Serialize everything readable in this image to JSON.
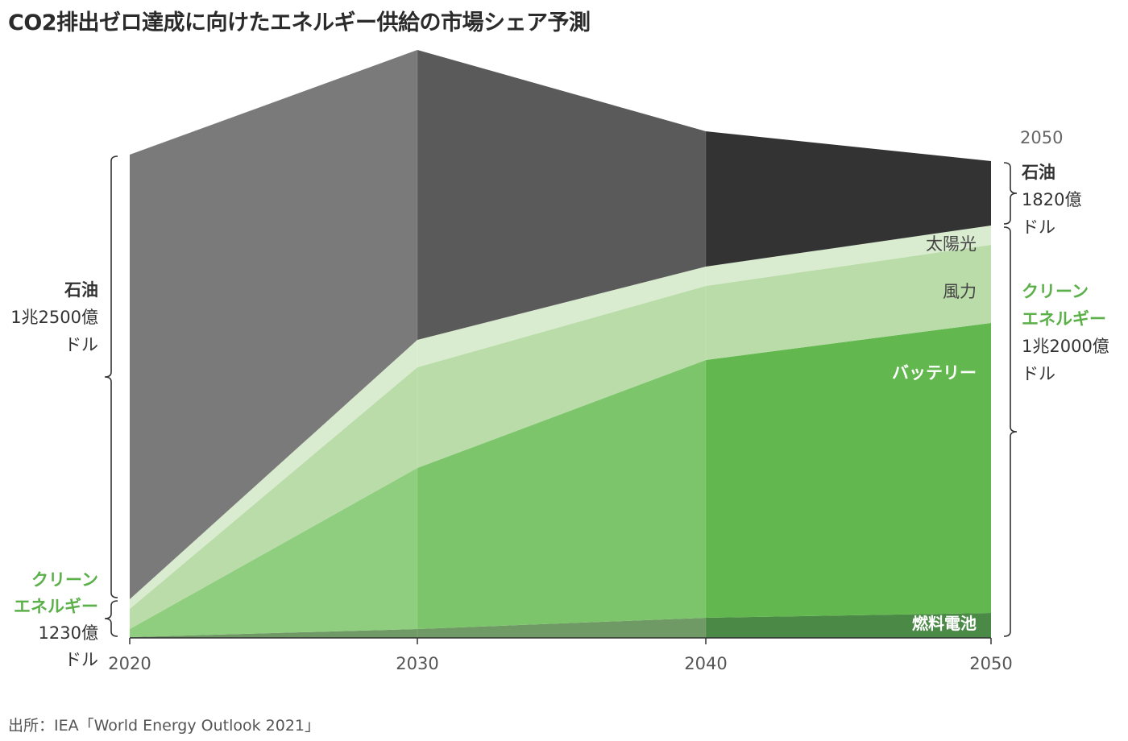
{
  "title": "CO2排出ゼロ達成に向けたエネルギー供給の市場シェア予測",
  "source": "出所：IEA「World Energy Outlook 2021」",
  "colors": {
    "oil": [
      "#7a7a7a",
      "#5a5a5a",
      "#333333"
    ],
    "solar": "#d9eccf",
    "wind": "#b9dca8",
    "battery": [
      "#8fce7e",
      "#7dc56a",
      "#62b84e"
    ],
    "fuel_cell": [
      "#6f9a66",
      "#6f9a66",
      "#4a8a46"
    ],
    "green_text": "#5cb04a"
  },
  "chart_data": {
    "type": "area",
    "stacked": true,
    "x": [
      2020,
      2030,
      2040,
      2050
    ],
    "x_tick_labels": [
      "2020",
      "2030",
      "2040",
      "2050"
    ],
    "series": [
      {
        "name": "燃料電池",
        "values": [
          1,
          11,
          25,
          31
        ]
      },
      {
        "name": "バッテリー",
        "values": [
          10,
          200,
          320,
          360
        ]
      },
      {
        "name": "風力",
        "values": [
          25,
          125,
          92,
          97
        ]
      },
      {
        "name": "太陽光",
        "values": [
          12,
          34,
          24,
          24
        ]
      },
      {
        "name": "石油",
        "values": [
          552,
          360,
          168,
          80
        ]
      }
    ],
    "ylim": [
      0,
      730
    ],
    "bracket_labels": {
      "start_oil": {
        "name": "石油",
        "value": "1兆2500億",
        "unit": "ドル"
      },
      "start_clean": {
        "name": "クリーン\nエネルギー",
        "value": "1230億",
        "unit": "ドル"
      },
      "end_year": "2050",
      "end_oil": {
        "name": "石油",
        "value": "1820億",
        "unit": "ドル"
      },
      "end_clean": {
        "name": "クリーン\nエネルギー",
        "value": "1兆2000億",
        "unit": "ドル"
      }
    },
    "inline_labels": {
      "solar": "太陽光",
      "wind": "風力",
      "battery": "バッテリー",
      "fuel_cell": "燃料電池"
    }
  }
}
